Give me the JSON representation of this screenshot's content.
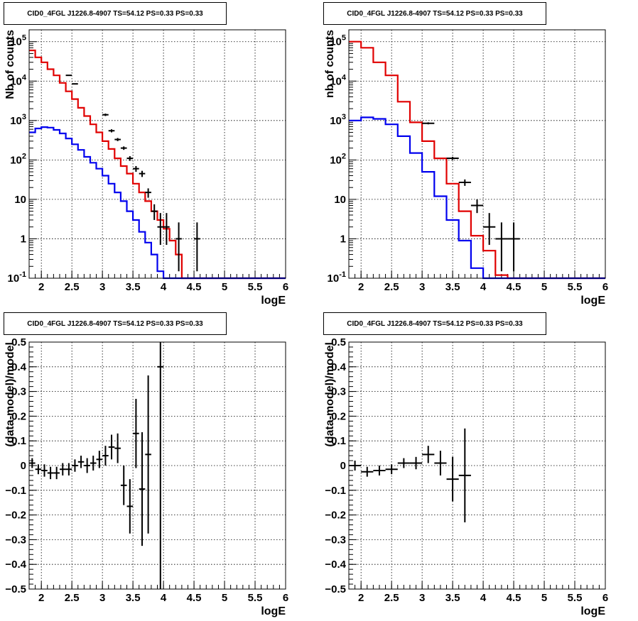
{
  "colors": {
    "data": "#000000",
    "total_model": "#e00000",
    "source_model": "#0000ee",
    "grid": "#000000",
    "frame": "#000000"
  },
  "chart_data": [
    {
      "type": "line",
      "title": "CID0_4FGL J1226.8-4907 TS=54.12 PS=0.33 PS=0.33",
      "xlabel": "logE",
      "ylabel": "Nb of counts",
      "ylog": true,
      "xlim": [
        1.8,
        6.0
      ],
      "ylim": [
        0.1,
        200000
      ],
      "xticks": [
        "2",
        "2.5",
        "3",
        "3.5",
        "4",
        "4.5",
        "5",
        "5.5",
        "6"
      ],
      "xtick_values": [
        2,
        2.5,
        3,
        3.5,
        4,
        4.5,
        5,
        5.5,
        6
      ],
      "yticks": [
        "10^{-1}",
        "1",
        "10",
        "10^{2}",
        "10^{3}",
        "10^{4}",
        "10^{5}"
      ],
      "ytick_values": [
        0.1,
        1,
        10,
        100,
        1000,
        10000,
        100000
      ],
      "grid": true,
      "bin_edges": [
        1.8,
        1.9,
        2.0,
        2.1,
        2.2,
        2.3,
        2.4,
        2.5,
        2.6,
        2.7,
        2.8,
        2.9,
        3.0,
        3.1,
        3.2,
        3.3,
        3.4,
        3.5,
        3.6,
        3.7,
        3.8,
        3.9,
        4.0,
        4.1,
        4.2,
        4.3,
        4.4,
        4.5,
        4.6,
        4.7,
        4.8,
        4.9,
        5.0,
        5.1,
        5.2,
        5.3,
        5.4,
        5.5,
        5.6,
        5.7,
        5.8,
        5.9,
        6.0
      ],
      "series": [
        {
          "role": "total_model",
          "values": [
            60000,
            40000,
            30000,
            20000,
            14000,
            9000,
            5500,
            3500,
            2100,
            1300,
            800,
            500,
            300,
            190,
            110,
            70,
            45,
            25,
            15,
            9,
            5,
            3,
            1.8,
            0.9,
            0.4,
            0.1,
            0.05,
            0.05,
            0.05,
            0.05,
            0.05,
            0.05,
            0.05,
            0.05,
            0.05,
            0.05,
            0.05,
            0.05,
            0.05,
            0.05,
            0.05,
            0.05
          ]
        },
        {
          "role": "source_model",
          "values": [
            500,
            630,
            680,
            660,
            580,
            470,
            350,
            250,
            180,
            120,
            85,
            60,
            40,
            25,
            15,
            9,
            5,
            3,
            1.5,
            0.8,
            0.4,
            0.15,
            0.1,
            0.1,
            0.1,
            0.1,
            0.1,
            0.1,
            0.1,
            0.1,
            0.1,
            0.1,
            0.1,
            0.1,
            0.1,
            0.1,
            0.1,
            0.1,
            0.1,
            0.1,
            0.1,
            0.1
          ]
        },
        {
          "role": "data",
          "x": [
            2.45,
            2.55,
            3.05,
            3.15,
            3.25,
            3.35,
            3.45,
            3.55,
            3.65,
            3.75,
            3.85,
            3.95,
            4.05,
            4.25,
            4.55
          ],
          "y": [
            14000,
            8500,
            1400,
            550,
            330,
            200,
            110,
            60,
            45,
            15,
            5,
            2,
            2,
            1,
            1
          ],
          "ylo": [
            13700,
            8300,
            1300,
            500,
            300,
            180,
            95,
            50,
            37,
            11,
            3,
            0.7,
            0.7,
            0.15,
            0.15
          ],
          "yhi": [
            14300,
            8700,
            1500,
            600,
            360,
            220,
            125,
            70,
            53,
            19,
            7.5,
            4.5,
            4.5,
            2.6,
            2.6
          ]
        }
      ]
    },
    {
      "type": "line",
      "title": "CID0_4FGL J1226.8-4907 TS=54.12 PS=0.33 PS=0.33",
      "xlabel": "logE",
      "ylabel": "nb of counts",
      "ylog": true,
      "xlim": [
        1.8,
        6.0
      ],
      "ylim": [
        0.1,
        200000
      ],
      "xticks": [
        "2",
        "2.5",
        "3",
        "3.5",
        "4",
        "4.5",
        "5",
        "5.5",
        "6"
      ],
      "xtick_values": [
        2,
        2.5,
        3,
        3.5,
        4,
        4.5,
        5,
        5.5,
        6
      ],
      "yticks": [
        "10^{-1}",
        "1",
        "10",
        "10^{2}",
        "10^{3}",
        "10^{4}",
        "10^{5}"
      ],
      "ytick_values": [
        0.1,
        1,
        10,
        100,
        1000,
        10000,
        100000
      ],
      "grid": true,
      "bin_edges": [
        1.8,
        2.0,
        2.2,
        2.4,
        2.6,
        2.8,
        3.0,
        3.2,
        3.4,
        3.6,
        3.8,
        4.0,
        4.2,
        4.4,
        4.6,
        4.8,
        5.0,
        5.2,
        5.4,
        5.6,
        5.8,
        6.0
      ],
      "series": [
        {
          "role": "total_model",
          "values": [
            100000,
            70000,
            30000,
            14000,
            3000,
            900,
            300,
            110,
            25,
            5,
            1.2,
            0.5,
            0.12,
            0.05,
            0.05,
            0.05,
            0.05,
            0.05,
            0.05,
            0.05,
            0.05
          ]
        },
        {
          "role": "source_model",
          "values": [
            1000,
            1200,
            1100,
            800,
            400,
            150,
            50,
            12,
            3,
            0.9,
            0.18,
            0.1,
            0.1,
            0.1,
            0.1,
            0.1,
            0.1,
            0.1,
            0.1,
            0.1,
            0.1
          ]
        },
        {
          "role": "data",
          "x": [
            3.1,
            3.5,
            3.7,
            3.9,
            4.1,
            4.3,
            4.5
          ],
          "y": [
            850,
            110,
            27,
            7,
            2,
            1,
            1
          ],
          "ylo": [
            800,
            100,
            22,
            4.5,
            0.7,
            0.15,
            0.15
          ],
          "yhi": [
            900,
            120,
            32,
            10,
            4.5,
            2.6,
            2.6
          ]
        }
      ]
    },
    {
      "type": "scatter",
      "title": "CID0_4FGL J1226.8-4907 TS=54.12 PS=0.33 PS=0.33",
      "xlabel": "logE",
      "ylabel": "(data-model)/model",
      "xlim": [
        1.8,
        6.0
      ],
      "ylim": [
        -0.5,
        0.5
      ],
      "xticks": [
        "2",
        "2.5",
        "3",
        "3.5",
        "4",
        "4.5",
        "5",
        "5.5",
        "6"
      ],
      "xtick_values": [
        2,
        2.5,
        3,
        3.5,
        4,
        4.5,
        5,
        5.5,
        6
      ],
      "yticks": [
        "−0.5",
        "−0.4",
        "−0.3",
        "−0.2",
        "−0.1",
        "0",
        "0.1",
        "0.2",
        "0.3",
        "0.4",
        "0.5"
      ],
      "ytick_values": [
        -0.5,
        -0.4,
        -0.3,
        -0.2,
        -0.1,
        0,
        0.1,
        0.2,
        0.3,
        0.4,
        0.5
      ],
      "grid": true,
      "series": [
        {
          "role": "data",
          "x": [
            1.85,
            1.95,
            2.05,
            2.15,
            2.25,
            2.35,
            2.45,
            2.55,
            2.65,
            2.75,
            2.85,
            2.95,
            3.05,
            3.15,
            3.25,
            3.35,
            3.45,
            3.55,
            3.65,
            3.75,
            3.95
          ],
          "xerr": 0.05,
          "y": [
            0.01,
            -0.015,
            -0.02,
            -0.03,
            -0.03,
            -0.015,
            -0.015,
            0.0,
            0.015,
            0.0,
            0.01,
            0.025,
            0.04,
            0.075,
            0.07,
            -0.08,
            -0.165,
            0.13,
            -0.095,
            0.045,
            0.4
          ],
          "err": [
            0.02,
            0.02,
            0.025,
            0.025,
            0.025,
            0.025,
            0.025,
            0.025,
            0.025,
            0.03,
            0.03,
            0.035,
            0.04,
            0.05,
            0.06,
            0.08,
            0.11,
            0.14,
            0.23,
            0.32,
            0.9
          ]
        }
      ]
    },
    {
      "type": "scatter",
      "title": "CID0_4FGL J1226.8-4907 TS=54.12 PS=0.33 PS=0.33",
      "xlabel": "logE",
      "ylabel": "(data-model)/model",
      "xlim": [
        1.8,
        6.0
      ],
      "ylim": [
        -0.5,
        0.5
      ],
      "xticks": [
        "2",
        "2.5",
        "3",
        "3.5",
        "4",
        "4.5",
        "5",
        "5.5",
        "6"
      ],
      "xtick_values": [
        2,
        2.5,
        3,
        3.5,
        4,
        4.5,
        5,
        5.5,
        6
      ],
      "yticks": [
        "−0.5",
        "−0.4",
        "−0.3",
        "−0.2",
        "−0.1",
        "0",
        "0.1",
        "0.2",
        "0.3",
        "0.4",
        "0.5"
      ],
      "ytick_values": [
        -0.5,
        -0.4,
        -0.3,
        -0.2,
        -0.1,
        0,
        0.1,
        0.2,
        0.3,
        0.4,
        0.5
      ],
      "grid": true,
      "series": [
        {
          "role": "data",
          "x": [
            1.9,
            2.1,
            2.3,
            2.5,
            2.7,
            2.9,
            3.1,
            3.3,
            3.5,
            3.7
          ],
          "xerr": 0.1,
          "y": [
            0.0,
            -0.025,
            -0.02,
            -0.015,
            0.01,
            0.01,
            0.045,
            0.01,
            -0.055,
            -0.04
          ],
          "err": [
            0.02,
            0.02,
            0.02,
            0.02,
            0.02,
            0.025,
            0.035,
            0.05,
            0.09,
            0.19
          ]
        }
      ]
    }
  ]
}
